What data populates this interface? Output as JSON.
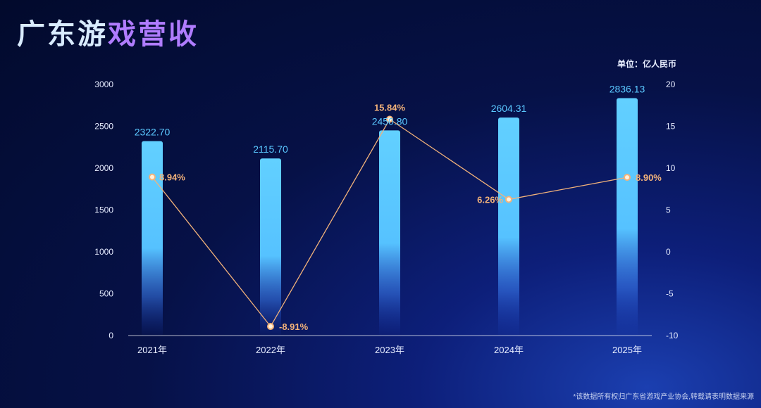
{
  "title_part1": "广东游",
  "title_part2": "戏营收",
  "unit": "单位：亿人民币",
  "footnote": "*该数据所有权归广东省游戏产业协会,转载请表明数据来源",
  "colors": {
    "bar": "#5bc8ff",
    "line": "#f2b27a",
    "axis_text": "#e6ecff"
  },
  "chart_data": {
    "type": "bar",
    "categories": [
      "2021年",
      "2022年",
      "2023年",
      "2024年",
      "2025年"
    ],
    "series": [
      {
        "values": [
          2322.7,
          2115.7,
          2450.8,
          2604.31,
          2836.13
        ],
        "labels": [
          "2322.70",
          "2115.70",
          "2450.80",
          "2604.31",
          "2836.13"
        ],
        "axis": "left"
      },
      {
        "type": "line",
        "values": [
          8.94,
          -8.91,
          15.84,
          6.26,
          8.9
        ],
        "labels": [
          "8.94%",
          "-8.91%",
          "15.84%",
          "6.26%",
          "8.90%"
        ],
        "axis": "right"
      }
    ],
    "ylim": [
      0,
      3000
    ],
    "yticks": [
      "0",
      "500",
      "1000",
      "1500",
      "2000",
      "2500",
      "3000"
    ],
    "y2lim": [
      -10,
      20
    ],
    "y2ticks": [
      "-10",
      "-5",
      "0",
      "5",
      "10",
      "15",
      "20"
    ],
    "grid": false
  }
}
